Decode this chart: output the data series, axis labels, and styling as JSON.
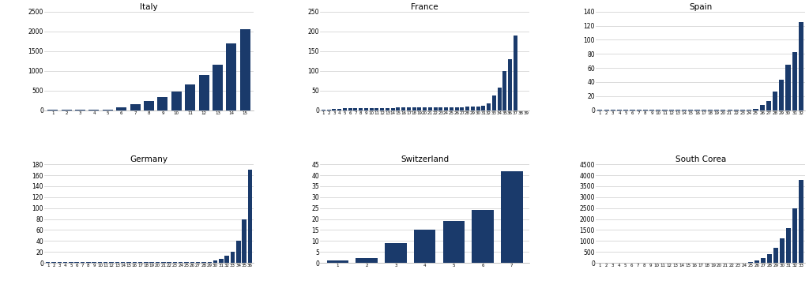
{
  "italy": {
    "title": "Italy",
    "labels": [
      "1",
      "2",
      "3",
      "4",
      "5",
      "6",
      "7",
      "8",
      "9",
      "10",
      "11",
      "12",
      "13",
      "14",
      "15"
    ],
    "values": [
      3,
      3,
      3,
      3,
      20,
      80,
      150,
      230,
      330,
      470,
      650,
      890,
      1150,
      1690,
      2050
    ],
    "ylim": [
      0,
      2500
    ],
    "yticks": [
      0,
      500,
      1000,
      1500,
      2000,
      2500
    ]
  },
  "france": {
    "title": "France",
    "labels": [
      "1",
      "2",
      "3",
      "4",
      "5",
      "6",
      "7",
      "8",
      "9",
      "10",
      "11",
      "12",
      "13",
      "14",
      "15",
      "16",
      "17",
      "18",
      "19",
      "20",
      "21",
      "22",
      "23",
      "24",
      "25",
      "26",
      "27",
      "28",
      "29",
      "30",
      "31",
      "32",
      "33",
      "34",
      "35",
      "36",
      "37",
      "38",
      "39"
    ],
    "values": [
      2,
      2,
      3,
      4,
      5,
      5,
      5,
      5,
      5,
      5,
      5,
      5,
      5,
      5,
      7,
      7,
      7,
      8,
      8,
      8,
      8,
      8,
      8,
      8,
      8,
      8,
      8,
      9,
      9,
      10,
      12,
      18,
      37,
      57,
      100,
      130,
      190,
      0,
      0
    ],
    "ylim": [
      0,
      250
    ],
    "yticks": [
      0,
      50,
      100,
      150,
      200,
      250
    ]
  },
  "spain": {
    "title": "Spain",
    "labels": [
      "1",
      "2",
      "3",
      "4",
      "5",
      "6",
      "7",
      "8",
      "9",
      "10",
      "11",
      "12",
      "13",
      "14",
      "15",
      "16",
      "17",
      "18",
      "19",
      "20",
      "21",
      "22",
      "23",
      "24",
      "25",
      "26",
      "27",
      "28",
      "29",
      "30",
      "31",
      "32"
    ],
    "values": [
      1,
      1,
      1,
      1,
      1,
      1,
      1,
      1,
      1,
      1,
      1,
      1,
      1,
      1,
      1,
      1,
      1,
      1,
      1,
      1,
      1,
      1,
      1,
      1,
      2,
      7,
      13,
      27,
      43,
      65,
      83,
      125
    ],
    "ylim": [
      0,
      140
    ],
    "yticks": [
      0,
      20,
      40,
      60,
      80,
      100,
      120,
      140
    ]
  },
  "germany": {
    "title": "Germany",
    "labels": [
      "1",
      "2",
      "3",
      "4",
      "5",
      "6",
      "7",
      "8",
      "9",
      "10",
      "11",
      "12",
      "13",
      "14",
      "15",
      "16",
      "17",
      "18",
      "19",
      "20",
      "21",
      "22",
      "23",
      "24",
      "25",
      "26",
      "27",
      "28",
      "29",
      "30",
      "31",
      "32",
      "33",
      "34",
      "35",
      "36"
    ],
    "values": [
      1,
      1,
      1,
      1,
      1,
      1,
      1,
      1,
      1,
      1,
      1,
      1,
      1,
      1,
      1,
      1,
      1,
      1,
      1,
      1,
      1,
      1,
      1,
      1,
      1,
      1,
      1,
      1,
      2,
      4,
      7,
      13,
      20,
      40,
      80,
      170
    ],
    "ylim": [
      0,
      180
    ],
    "yticks": [
      0,
      20,
      40,
      60,
      80,
      100,
      120,
      140,
      160,
      180
    ]
  },
  "switzerland": {
    "title": "Switzerland",
    "labels": [
      "1",
      "2",
      "3",
      "4",
      "5",
      "6",
      "7"
    ],
    "values": [
      1,
      2,
      9,
      15,
      19,
      24,
      42
    ],
    "ylim": [
      0,
      45
    ],
    "yticks": [
      0,
      5,
      10,
      15,
      20,
      25,
      30,
      35,
      40,
      45
    ]
  },
  "south_corea": {
    "title": "South Corea",
    "labels": [
      "1",
      "2",
      "3",
      "4",
      "5",
      "6",
      "7",
      "8",
      "9",
      "10",
      "11",
      "12",
      "13",
      "14",
      "15",
      "16",
      "17",
      "18",
      "19",
      "20",
      "21",
      "22",
      "23",
      "24",
      "25",
      "26",
      "27",
      "28",
      "29",
      "30",
      "31",
      "32",
      "33"
    ],
    "values": [
      4,
      4,
      4,
      4,
      4,
      4,
      4,
      4,
      4,
      4,
      4,
      4,
      4,
      4,
      4,
      4,
      4,
      4,
      4,
      4,
      4,
      4,
      4,
      4,
      30,
      100,
      200,
      400,
      700,
      1100,
      1600,
      2500,
      3800
    ],
    "ylim": [
      0,
      4500
    ],
    "yticks": [
      0,
      500,
      1000,
      1500,
      2000,
      2500,
      3000,
      3500,
      4000,
      4500
    ]
  },
  "bar_color": "#1a3a6b",
  "bg_color": "#ffffff",
  "grid_color": "#cccccc"
}
